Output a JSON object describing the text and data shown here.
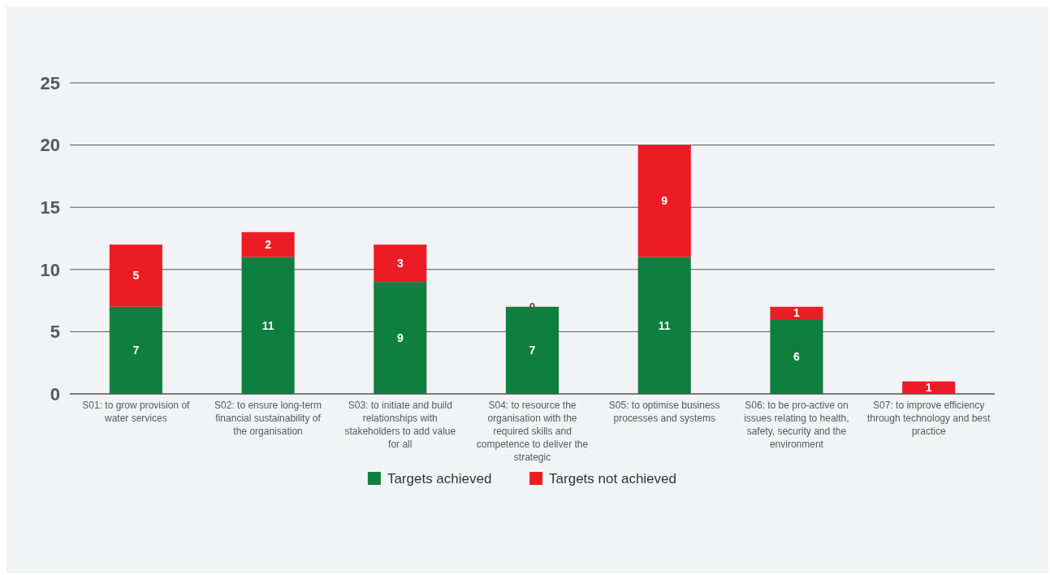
{
  "chart_data": {
    "type": "bar",
    "stacked": true,
    "categories": [
      "S01: to grow provision of water services",
      "S02: to ensure long-term financial sustainability of the organisation",
      "S03: to initiate and build relationships with stakeholders to add value for all",
      "S04: to resource the organisation with the required skills and competence to deliver the strategic",
      "S05: to optimise business processes and systems",
      "S06: to be pro-active on issues relating to health, safety, security and the environment",
      "S07: to improve efficiency through technology and best practice"
    ],
    "series": [
      {
        "name": "Targets achieved",
        "color": "#0e7f3e",
        "values": [
          7,
          11,
          9,
          7,
          11,
          6,
          0
        ],
        "value_labels": [
          "7",
          "11",
          "9",
          "7",
          "11",
          "6",
          null
        ]
      },
      {
        "name": "Targets not achieved",
        "color": "#ed1c24",
        "values": [
          5,
          2,
          3,
          0,
          9,
          1,
          1
        ],
        "value_labels": [
          "5",
          "2",
          "3",
          "0",
          "9",
          "1",
          "1"
        ]
      }
    ],
    "ylim": [
      0,
      25
    ],
    "yticks": [
      0,
      5,
      10,
      15,
      20,
      25
    ],
    "grid": "y",
    "legend": "bottom"
  }
}
